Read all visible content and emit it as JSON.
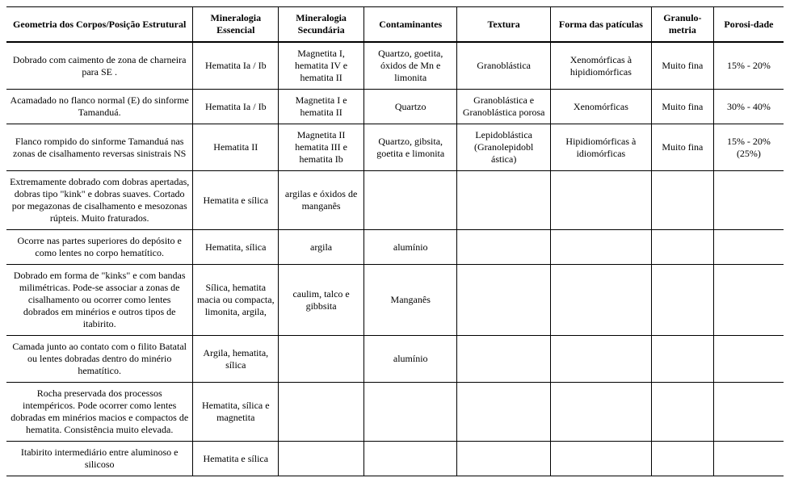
{
  "table": {
    "type": "table",
    "background_color": "#ffffff",
    "text_color": "#000000",
    "border_color": "#000000",
    "header_font_weight": "bold",
    "font_family": "Times New Roman",
    "font_size_pt": 10,
    "columns": [
      {
        "key": "geo",
        "label": "Geometria dos Corpos/Posição Estrutural",
        "width_pct": 24,
        "align": "center"
      },
      {
        "key": "ess",
        "label": "Mineralogia Essencial",
        "width_pct": 11,
        "align": "center"
      },
      {
        "key": "sec",
        "label": "Mineralogia Secundária",
        "width_pct": 11,
        "align": "center"
      },
      {
        "key": "cont",
        "label": "Contaminantes",
        "width_pct": 12,
        "align": "center"
      },
      {
        "key": "tex",
        "label": "Textura",
        "width_pct": 12,
        "align": "center"
      },
      {
        "key": "forma",
        "label": "Forma das patículas",
        "width_pct": 13,
        "align": "center"
      },
      {
        "key": "gran",
        "label": "Granulo-metria",
        "width_pct": 8,
        "align": "center"
      },
      {
        "key": "por",
        "label": "Porosi-dade",
        "width_pct": 9,
        "align": "center"
      }
    ],
    "rows": [
      {
        "geo": "Dobrado com caimento de zona de charneira para SE .",
        "ess": "Hematita Ia / Ib",
        "sec": "Magnetita I, hematita IV e hematita II",
        "cont": "Quartzo, goetita, óxidos de Mn e limonita",
        "tex": "Granoblástica",
        "forma": "Xenomórficas à hipidiomórficas",
        "gran": "Muito fina",
        "por": "15% - 20%"
      },
      {
        "geo": "Acamadado no flanco normal (E) do sinforme Tamanduá.",
        "ess": "Hematita Ia / Ib",
        "sec": "Magnetita I e hematita II",
        "cont": "Quartzo",
        "tex": "Granoblástica e Granoblástica porosa",
        "forma": "Xenomórficas",
        "gran": "Muito fina",
        "por": "30% - 40%"
      },
      {
        "geo": "Flanco rompido do sinforme Tamanduá nas zonas de cisalhamento reversas sinistrais NS",
        "ess": "Hematita II",
        "sec": "Magnetita II hematita III e hematita Ib",
        "cont": "Quartzo, gibsita, goetita e limonita",
        "tex": "Lepidoblástica (Granolepidobl ástica)",
        "forma": "Hipidiomórficas à idiomórficas",
        "gran": "Muito fina",
        "por": "15% - 20% (25%)"
      },
      {
        "geo": "Extremamente dobrado com dobras apertadas, dobras tipo \"kink\" e dobras suaves. Cortado por megazonas de cisalhamento e mesozonas rúpteis. Muito fraturados.",
        "ess": "Hematita e sílica",
        "sec": "argilas e óxidos de manganês",
        "cont": "",
        "tex": "",
        "forma": "",
        "gran": "",
        "por": ""
      },
      {
        "geo": "Ocorre nas partes superiores do depósito e como lentes no corpo hematítico.",
        "ess": "Hematita, sílica",
        "sec": "argila",
        "cont": "alumínio",
        "tex": "",
        "forma": "",
        "gran": "",
        "por": ""
      },
      {
        "geo": "Dobrado em forma de \"kinks\" e com bandas milimétricas. Pode-se associar a zonas de cisalhamento ou ocorrer como lentes dobrados em minérios e outros tipos de itabirito.",
        "ess": "Sílica, hematita macia ou compacta, limonita, argila,",
        "sec": "caulim, talco e gibbsita",
        "cont": "Manganês",
        "tex": "",
        "forma": "",
        "gran": "",
        "por": ""
      },
      {
        "geo": "Camada junto ao contato com o filito Batatal ou lentes dobradas dentro do minério hematítico.",
        "ess": "Argila, hematita, sílica",
        "sec": "",
        "cont": "alumínio",
        "tex": "",
        "forma": "",
        "gran": "",
        "por": ""
      },
      {
        "geo": "Rocha preservada dos processos intempéricos. Pode ocorrer como lentes dobradas em minérios macios e compactos de hematita. Consistência muito elevada.",
        "ess": "Hematita, sílica e magnetita",
        "sec": "",
        "cont": "",
        "tex": "",
        "forma": "",
        "gran": "",
        "por": ""
      },
      {
        "geo": "Itabirito intermediário entre aluminoso e silicoso",
        "ess": "Hematita e sílica",
        "sec": "",
        "cont": "",
        "tex": "",
        "forma": "",
        "gran": "",
        "por": ""
      }
    ]
  }
}
